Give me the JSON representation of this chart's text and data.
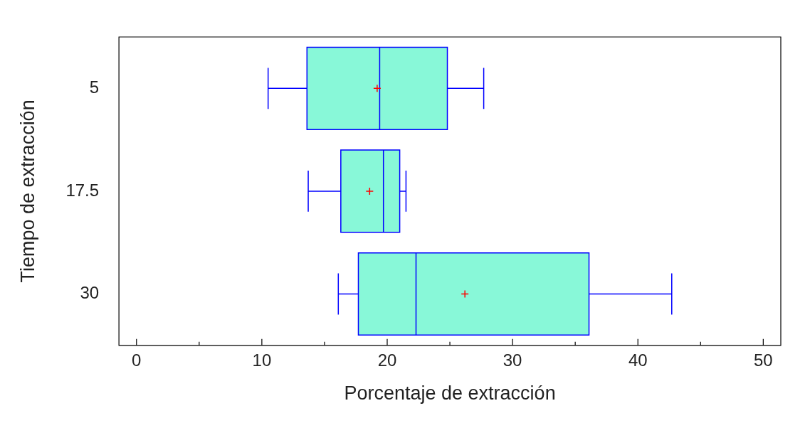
{
  "chart_data": {
    "type": "box",
    "orientation": "horizontal",
    "xlabel": "Porcentaje de extracción",
    "ylabel": "Tiempo de extracción",
    "categories": [
      "5",
      "17.5",
      "30"
    ],
    "series": [
      {
        "color": "#88f8d8",
        "boxes": [
          {
            "low": 10.5,
            "q1": 13.6,
            "median": 19.4,
            "q3": 24.8,
            "high": 27.7,
            "mean": 19.2
          },
          {
            "low": 13.7,
            "q1": 16.3,
            "median": 19.7,
            "q3": 21,
            "high": 21.5,
            "mean": 18.6
          },
          {
            "low": 16.1,
            "q1": 17.7,
            "median": 22.3,
            "q3": 36.1,
            "high": 42.7,
            "mean": 26.2
          }
        ]
      }
    ],
    "xlim": [
      -1.4,
      51.4
    ],
    "xticks": [
      0,
      {
        "value": 5,
        "label": null
      },
      10,
      {
        "value": 15,
        "label": null
      },
      20,
      {
        "value": 25,
        "label": null
      },
      30,
      {
        "value": 35,
        "label": null
      },
      40,
      {
        "value": 45,
        "label": null
      },
      50
    ],
    "grid": false,
    "legend": false,
    "marker": "cross"
  }
}
